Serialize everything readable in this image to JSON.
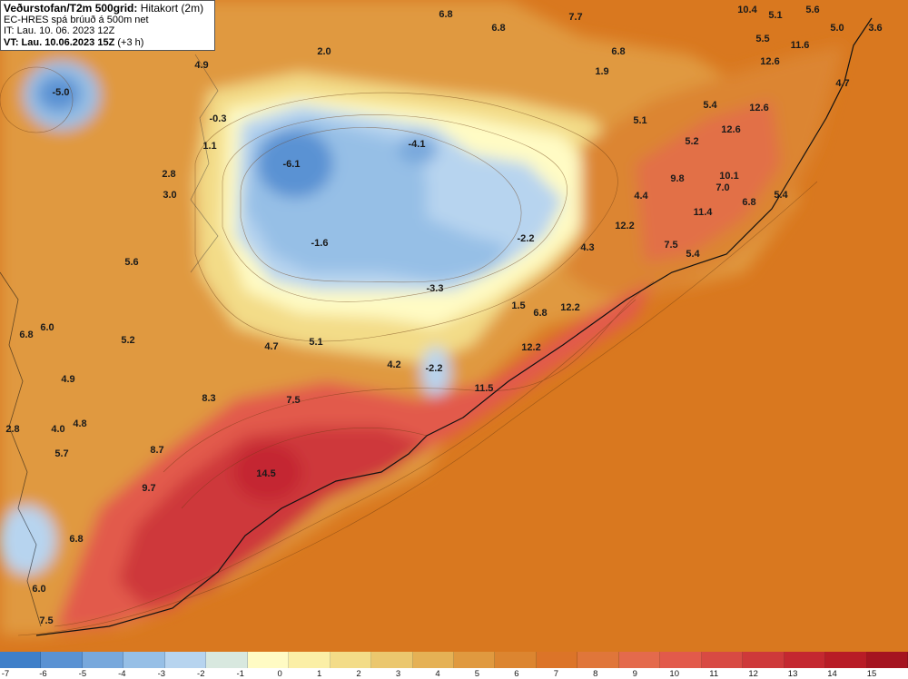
{
  "header": {
    "title": "Veðurstofan/T2m 500grid:",
    "title_suffix": "Hitakort (2m)",
    "line2": "EC-HRES spá brúuð á 500m net",
    "line3": "IT: Lau. 10. 06. 2023 12Z",
    "line4_bold": "VT: Lau. 10.06.2023 15Z",
    "line4_suffix": "(+3 h)"
  },
  "labels": [
    {
      "t": "6.8"
    },
    {
      "t": "7.7"
    },
    {
      "t": "10.4"
    },
    {
      "t": "5.1"
    },
    {
      "t": "5.6"
    },
    {
      "t": "5.0"
    },
    {
      "t": "3.6"
    },
    {
      "t": "6.8"
    },
    {
      "t": "5.5"
    },
    {
      "t": "11.6"
    },
    {
      "t": "2.0"
    },
    {
      "t": "4.9"
    },
    {
      "t": "1.9"
    },
    {
      "t": "6.8"
    },
    {
      "t": "12.6"
    },
    {
      "t": "4.7"
    },
    {
      "t": "-5.0"
    },
    {
      "t": "-0.3"
    },
    {
      "t": "5.4"
    },
    {
      "t": "12.6"
    },
    {
      "t": "5.1"
    },
    {
      "t": "-4.1"
    },
    {
      "t": "1.1"
    },
    {
      "t": "12.6"
    },
    {
      "t": "5.2"
    },
    {
      "t": "-6.1"
    },
    {
      "t": "9.8"
    },
    {
      "t": "2.8"
    },
    {
      "t": "10.1"
    },
    {
      "t": "3.0"
    },
    {
      "t": "7.0"
    },
    {
      "t": "4.4"
    },
    {
      "t": "6.8"
    },
    {
      "t": "5.4"
    },
    {
      "t": "11.4"
    },
    {
      "t": "12.2"
    },
    {
      "t": "-1.6"
    },
    {
      "t": "-2.2"
    },
    {
      "t": "4.3"
    },
    {
      "t": "7.5"
    },
    {
      "t": "5.4"
    },
    {
      "t": "5.6"
    },
    {
      "t": "-3.3"
    },
    {
      "t": "1.5"
    },
    {
      "t": "6.8"
    },
    {
      "t": "12.2"
    },
    {
      "t": "6.0"
    },
    {
      "t": "6.8"
    },
    {
      "t": "5.2"
    },
    {
      "t": "5.1"
    },
    {
      "t": "4.7"
    },
    {
      "t": "12.2"
    },
    {
      "t": "4.9"
    },
    {
      "t": "4.2"
    },
    {
      "t": "-2.2"
    },
    {
      "t": "11.5"
    },
    {
      "t": "8.3"
    },
    {
      "t": "7.5"
    },
    {
      "t": "4.0"
    },
    {
      "t": "4.8"
    },
    {
      "t": "2.8"
    },
    {
      "t": "8.7"
    },
    {
      "t": "5.7"
    },
    {
      "t": "14.5"
    },
    {
      "t": "9.7"
    },
    {
      "t": "6.8"
    },
    {
      "t": "6.0"
    },
    {
      "t": "7.5"
    }
  ],
  "colorbar": {
    "colors": [
      "#3f7fc9",
      "#5a92d3",
      "#78a8dc",
      "#96bfe6",
      "#b7d4ef",
      "#d8e8df",
      "#fffbc4",
      "#fbefa6",
      "#f3dc88",
      "#ebc76e",
      "#e5b155",
      "#e0993f",
      "#dc8530",
      "#dc7428",
      "#e0763a",
      "#e46a4c",
      "#e25a4b",
      "#d84a43",
      "#ce393a",
      "#c42830",
      "#b81c26",
      "#a51420"
    ],
    "ticks": [
      "-7",
      "-6",
      "-5",
      "-4",
      "-3",
      "-2",
      "-1",
      "0",
      "1",
      "2",
      "3",
      "4",
      "5",
      "6",
      "7",
      "8",
      "9",
      "10",
      "11",
      "12",
      "13",
      "14",
      "15"
    ]
  }
}
